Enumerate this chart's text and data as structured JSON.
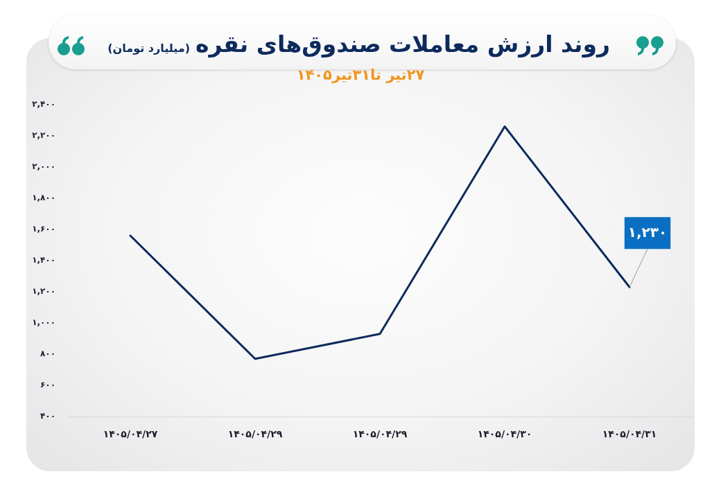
{
  "chart_data": {
    "type": "line",
    "title": "روند ارزش معاملات صندوق‌های نقره",
    "subtitle": "۲۷تیر تا۳۱تیر۱۴۰۵",
    "ylabel": "(میلیارد تومان)",
    "categories": [
      "۱۴۰۵/۰۴/۲۷",
      "۱۴۰۵/۰۴/۲۹",
      "۱۴۰۵/۰۴/۲۹",
      "۱۴۰۵/۰۴/۳۰",
      "۱۴۰۵/۰۴/۳۱"
    ],
    "values": [
      1560,
      770,
      930,
      2260,
      1230
    ],
    "color": "#0d2a5c",
    "value_labels": [
      null,
      null,
      null,
      null,
      "۱,۲۳۰"
    ],
    "ylim": [
      400,
      2400
    ],
    "yticks": [
      {
        "value": 400,
        "label": "۴۰۰"
      },
      {
        "value": 600,
        "label": "۶۰۰"
      },
      {
        "value": 800,
        "label": "۸۰۰"
      },
      {
        "value": 1000,
        "label": "۱,۰۰۰"
      },
      {
        "value": 1200,
        "label": "۱,۲۰۰"
      },
      {
        "value": 1400,
        "label": "۱,۴۰۰"
      },
      {
        "value": 1600,
        "label": "۱,۶۰۰"
      },
      {
        "value": 1800,
        "label": "۱,۸۰۰"
      },
      {
        "value": 2000,
        "label": "۲,۰۰۰"
      },
      {
        "value": 2200,
        "label": "۲,۲۰۰"
      },
      {
        "value": 2400,
        "label": "۲,۴۰۰"
      }
    ]
  }
}
